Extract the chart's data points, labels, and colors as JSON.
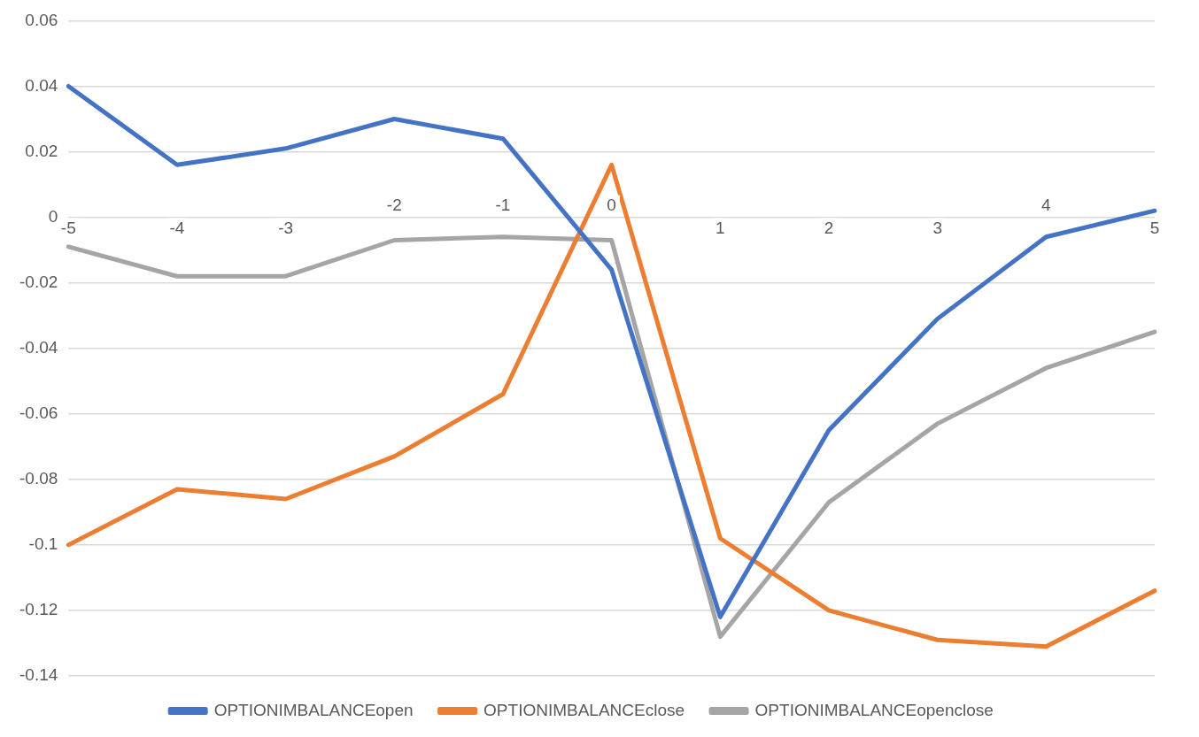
{
  "chart_data": {
    "type": "line",
    "categories": [
      "-5",
      "-4",
      "-3",
      "-2",
      "-1",
      "0",
      "1",
      "2",
      "3",
      "4",
      "5"
    ],
    "series": [
      {
        "name": "OPTIONIMBALANCEopen",
        "color": "#4472c4",
        "values": [
          0.04,
          0.016,
          0.021,
          0.03,
          0.024,
          -0.016,
          -0.122,
          -0.065,
          -0.031,
          -0.006,
          0.002
        ]
      },
      {
        "name": "OPTIONIMBALANCEclose",
        "color": "#ed7d31",
        "values": [
          -0.1,
          -0.083,
          -0.086,
          -0.073,
          -0.054,
          0.016,
          -0.098,
          -0.12,
          -0.129,
          -0.131,
          -0.114
        ]
      },
      {
        "name": "OPTIONIMBALANCEopenclose",
        "color": "#a5a5a5",
        "values": [
          -0.009,
          -0.018,
          -0.018,
          -0.007,
          -0.006,
          -0.007,
          -0.128,
          -0.087,
          -0.063,
          -0.046,
          -0.035
        ]
      }
    ],
    "ylim": [
      -0.14,
      0.06
    ],
    "yticks": [
      {
        "value": -0.14,
        "label": "-0.14"
      },
      {
        "value": -0.12,
        "label": "-0.12"
      },
      {
        "value": -0.1,
        "label": "-0.1"
      },
      {
        "value": -0.08,
        "label": "-0.08"
      },
      {
        "value": -0.06,
        "label": "-0.06"
      },
      {
        "value": -0.04,
        "label": "-0.04"
      },
      {
        "value": -0.02,
        "label": "-0.02"
      },
      {
        "value": 0,
        "label": "0"
      },
      {
        "value": 0.02,
        "label": "0.02"
      },
      {
        "value": 0.04,
        "label": "0.04"
      },
      {
        "value": 0.06,
        "label": "0.06"
      }
    ],
    "grid": "y",
    "legend": "bottom",
    "marker": "none",
    "line_style": "solid"
  }
}
